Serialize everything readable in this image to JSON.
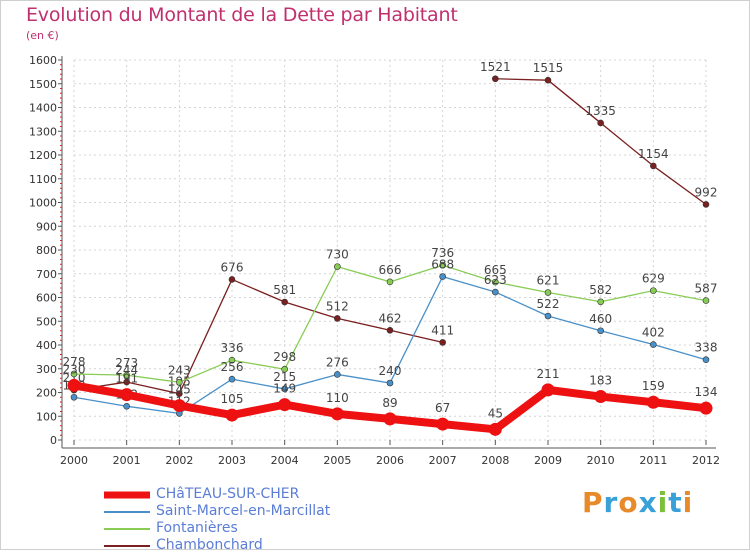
{
  "header": {
    "title": "Evolution du Montant de la Dette par Habitant",
    "unit": "(en €)"
  },
  "logo": {
    "text": "Proxiti",
    "colors": [
      "#e8892a",
      "#3aa0d8",
      "#e8892a",
      "#3aa0d8",
      "#7cc03a",
      "#3aa0d8",
      "#e8892a"
    ]
  },
  "chart_data": {
    "type": "line",
    "x": [
      "2000",
      "2001",
      "2002",
      "2003",
      "2004",
      "2005",
      "2006",
      "2007",
      "2008",
      "2009",
      "2010",
      "2011",
      "2012"
    ],
    "ylim": [
      0,
      1600
    ],
    "yticks": [
      0,
      100,
      200,
      300,
      400,
      500,
      600,
      700,
      800,
      900,
      1000,
      1100,
      1200,
      1300,
      1400,
      1500,
      1600
    ],
    "grid": true,
    "legend_position": "bottom-left",
    "series": [
      {
        "name": "CHâTEAU-SUR-CHER",
        "color": "#ee1111",
        "values": [
          230,
          191,
          145,
          105,
          149,
          110,
          89,
          67,
          45,
          211,
          183,
          159,
          134
        ],
        "labels": [
          "230",
          "191",
          "145",
          "105",
          "149",
          "110",
          "89",
          "67",
          "45",
          "211",
          "183",
          "159",
          "134"
        ]
      },
      {
        "name": "Saint-Marcel-en-Marcillat",
        "color": "#4a90c8",
        "values": [
          180,
          142,
          112,
          256,
          215,
          276,
          240,
          688,
          623,
          522,
          460,
          402,
          338
        ],
        "labels": [
          "180",
          "142",
          "112",
          "256",
          "215",
          "276",
          "240",
          "688",
          "623",
          "522",
          "460",
          "402",
          "338"
        ]
      },
      {
        "name": "Fontanières",
        "color": "#88cc55",
        "values": [
          278,
          273,
          243,
          336,
          298,
          730,
          666,
          736,
          665,
          621,
          582,
          629,
          587
        ],
        "labels": [
          "278",
          "273",
          "243",
          "336",
          "298",
          "730",
          "666",
          "736",
          "665",
          "621",
          "582",
          "629",
          "587"
        ]
      },
      {
        "name": "Chambonchard",
        "color": "#7a2020",
        "values": [
          210,
          244,
          195,
          676,
          581,
          512,
          462,
          411,
          1521,
          1515,
          1335,
          1154,
          992
        ],
        "labels": [
          "210",
          "244",
          "195",
          "676",
          "581",
          "512",
          "462",
          "411",
          "1521",
          "1515",
          "1335",
          "1154",
          "992"
        ],
        "break_after_index": 7
      }
    ]
  }
}
